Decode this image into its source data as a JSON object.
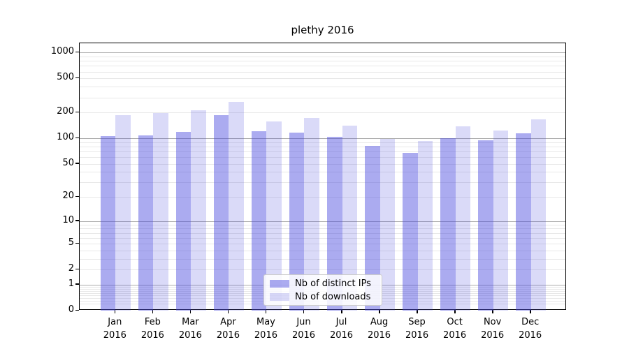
{
  "figure": {
    "background": "#ffffff"
  },
  "chart_data": {
    "type": "bar",
    "title": "plethy 2016",
    "categories": [
      "Jan 2016",
      "Feb 2016",
      "Mar 2016",
      "Apr 2016",
      "May 2016",
      "Jun 2016",
      "Jul 2016",
      "Aug 2016",
      "Sep 2016",
      "Oct 2016",
      "Nov 2016",
      "Dec 2016"
    ],
    "series": [
      {
        "name": "Nb of distinct IPs",
        "fill": "rgba(68,68,221,0.45)",
        "approx_hex": "#a6a6f0",
        "values": [
          105,
          108,
          119,
          186,
          120,
          116,
          104,
          81,
          67,
          100,
          95,
          114
        ]
      },
      {
        "name": "Nb of downloads",
        "fill": "rgba(68,68,221,0.2)",
        "approx_hex": "#d9d9f8",
        "values": [
          186,
          198,
          212,
          266,
          157,
          173,
          141,
          98,
          93,
          138,
          124,
          167
        ]
      }
    ],
    "xlabel": "",
    "ylabel": "",
    "yscale": "log1p",
    "ylim": [
      0,
      1283
    ],
    "ytick_values": [
      1000,
      500,
      200,
      100,
      50,
      20,
      10,
      5,
      2,
      1,
      0
    ],
    "ytick_labels": [
      "1000",
      "500",
      "200",
      "100",
      "50",
      "20",
      "10",
      "5",
      "2",
      "1",
      "0"
    ],
    "grid": {
      "major_values": [
        1,
        10,
        100,
        1000
      ],
      "major_color": "#ababab",
      "minor_color": "#e8e8e8",
      "minor_bases": [
        0.1,
        1,
        10,
        100
      ]
    },
    "legend": {
      "position": "lower center"
    }
  }
}
